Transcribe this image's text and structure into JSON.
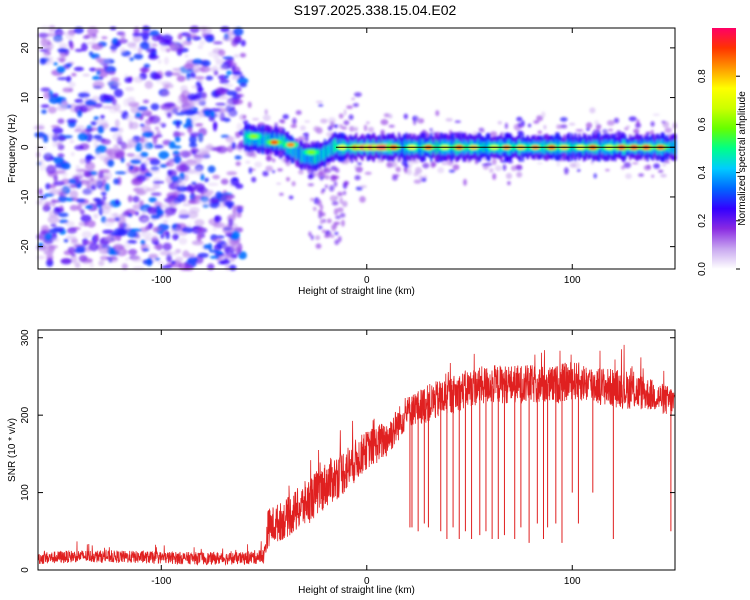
{
  "title": "S197.2025.338.15.04.E02",
  "chart_data": [
    {
      "type": "heatmap",
      "title": "S197.2025.338.15.04.E02",
      "xlabel": "Height of straight line (km)",
      "ylabel": "Frequency (Hz)",
      "xlim": [
        -160,
        150
      ],
      "ylim": [
        -24.5,
        24
      ],
      "x_ticks": [
        -100,
        0,
        100
      ],
      "y_ticks": [
        -20,
        -10,
        0,
        10,
        20
      ],
      "x_tick_labels": [
        "-100",
        "0",
        "100"
      ],
      "y_tick_labels": [
        "-20",
        "-10",
        "0",
        "10",
        "20"
      ],
      "colorbar": {
        "label": "Normalized spectral amplitude",
        "range": [
          0,
          1
        ],
        "ticks": [
          0.0,
          0.2,
          0.4,
          0.6,
          0.8
        ],
        "tick_labels": [
          "0.0",
          "0.2",
          "0.4",
          "0.6",
          "0.8"
        ],
        "colors": [
          "#ffffff",
          "#c9a8f0",
          "#8a2be2",
          "#3300ff",
          "#0066ff",
          "#00ccff",
          "#00ff88",
          "#66ff00",
          "#ccff00",
          "#ffff00",
          "#ff9900",
          "#ff3300",
          "#ff0066"
        ]
      },
      "regions": [
        {
          "name": "noise",
          "x_range": [
            -160,
            -60
          ],
          "f_range": [
            -24.5,
            24
          ],
          "amplitude": [
            0.0,
            0.35
          ]
        },
        {
          "name": "signal-band",
          "x_range": [
            -60,
            150
          ],
          "f_center": 0,
          "f_halfwidth": 2,
          "amplitude": [
            0.2,
            1.0
          ]
        }
      ],
      "reference_line": {
        "x_range": [
          -15,
          150
        ],
        "f": 0,
        "color": "#000000"
      }
    },
    {
      "type": "line",
      "xlabel": "Height of straight line (km)",
      "ylabel": "SNR (10 * v/v)",
      "xlim": [
        -160,
        150
      ],
      "ylim": [
        0,
        310
      ],
      "x_ticks": [
        -100,
        0,
        100
      ],
      "y_ticks": [
        0,
        100,
        200,
        300
      ],
      "x_tick_labels": [
        "-100",
        "0",
        "100"
      ],
      "y_tick_labels": [
        "0",
        "100",
        "200",
        "300"
      ],
      "series": [
        {
          "name": "SNR",
          "color": "#e02020",
          "x": [
            -160,
            -140,
            -120,
            -100,
            -80,
            -60,
            -50,
            -48,
            -40,
            -30,
            -20,
            -10,
            0,
            10,
            20,
            30,
            40,
            50,
            60,
            70,
            80,
            90,
            100,
            110,
            120,
            130,
            140,
            150
          ],
          "values": [
            15,
            18,
            17,
            16,
            15,
            15,
            18,
            55,
            65,
            85,
            110,
            130,
            155,
            170,
            205,
            215,
            225,
            235,
            240,
            240,
            240,
            238,
            245,
            240,
            235,
            232,
            225,
            215
          ],
          "noise_amplitude": [
            8,
            8,
            8,
            8,
            8,
            8,
            10,
            25,
            25,
            30,
            30,
            30,
            25,
            25,
            20,
            25,
            25,
            25,
            25,
            25,
            25,
            25,
            25,
            25,
            25,
            25,
            20,
            20
          ],
          "dropouts_x": [
            21,
            22,
            25,
            28,
            30,
            36,
            39,
            42,
            45,
            48,
            51,
            55,
            58,
            61,
            64,
            67,
            72,
            75,
            79,
            83,
            86,
            88,
            92,
            95,
            100,
            103,
            110,
            120,
            148
          ],
          "dropouts_y": [
            55,
            55,
            50,
            60,
            55,
            50,
            40,
            55,
            40,
            50,
            40,
            45,
            50,
            40,
            40,
            45,
            40,
            55,
            35,
            60,
            40,
            55,
            60,
            35,
            100,
            60,
            100,
            40,
            50
          ]
        }
      ]
    }
  ]
}
